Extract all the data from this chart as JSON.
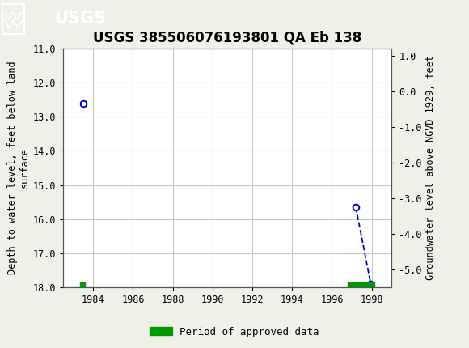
{
  "title": "USGS 385506076193801 QA Eb 138",
  "ylabel_left": "Depth to water level, feet below land\nsurface",
  "ylabel_right": "Groundwater level above NGVD 1929, feet",
  "ylim_left": [
    18.0,
    11.0
  ],
  "ylim_right": [
    -5.5,
    1.2
  ],
  "xlim": [
    1982.5,
    1999.0
  ],
  "xticks": [
    1984,
    1986,
    1988,
    1990,
    1992,
    1994,
    1996,
    1998
  ],
  "yticks_left": [
    11.0,
    12.0,
    13.0,
    14.0,
    15.0,
    16.0,
    17.0,
    18.0
  ],
  "yticks_right": [
    1.0,
    0.0,
    -1.0,
    -2.0,
    -3.0,
    -4.0,
    -5.0
  ],
  "scatter_x": [
    1983.5,
    1997.2,
    1997.95
  ],
  "scatter_y": [
    12.6,
    15.65,
    17.9
  ],
  "line_x": [
    1997.2,
    1997.95
  ],
  "line_y": [
    15.65,
    17.9
  ],
  "approved_bars": [
    {
      "x_start": 1983.35,
      "x_end": 1983.6,
      "y": 18.0,
      "height": 0.13
    },
    {
      "x_start": 1996.8,
      "x_end": 1998.15,
      "y": 18.0,
      "height": 0.13
    }
  ],
  "dot_color": "#0000cc",
  "line_color": "#0000cc",
  "bar_color": "#009900",
  "background_color": "#f0f0e8",
  "plot_bg_color": "#ffffff",
  "grid_color": "#c8c8c8",
  "header_bg_color": "#1a7a3a",
  "title_fontsize": 12,
  "axis_label_fontsize": 8.5,
  "tick_fontsize": 8.5,
  "legend_label": "Period of approved data"
}
